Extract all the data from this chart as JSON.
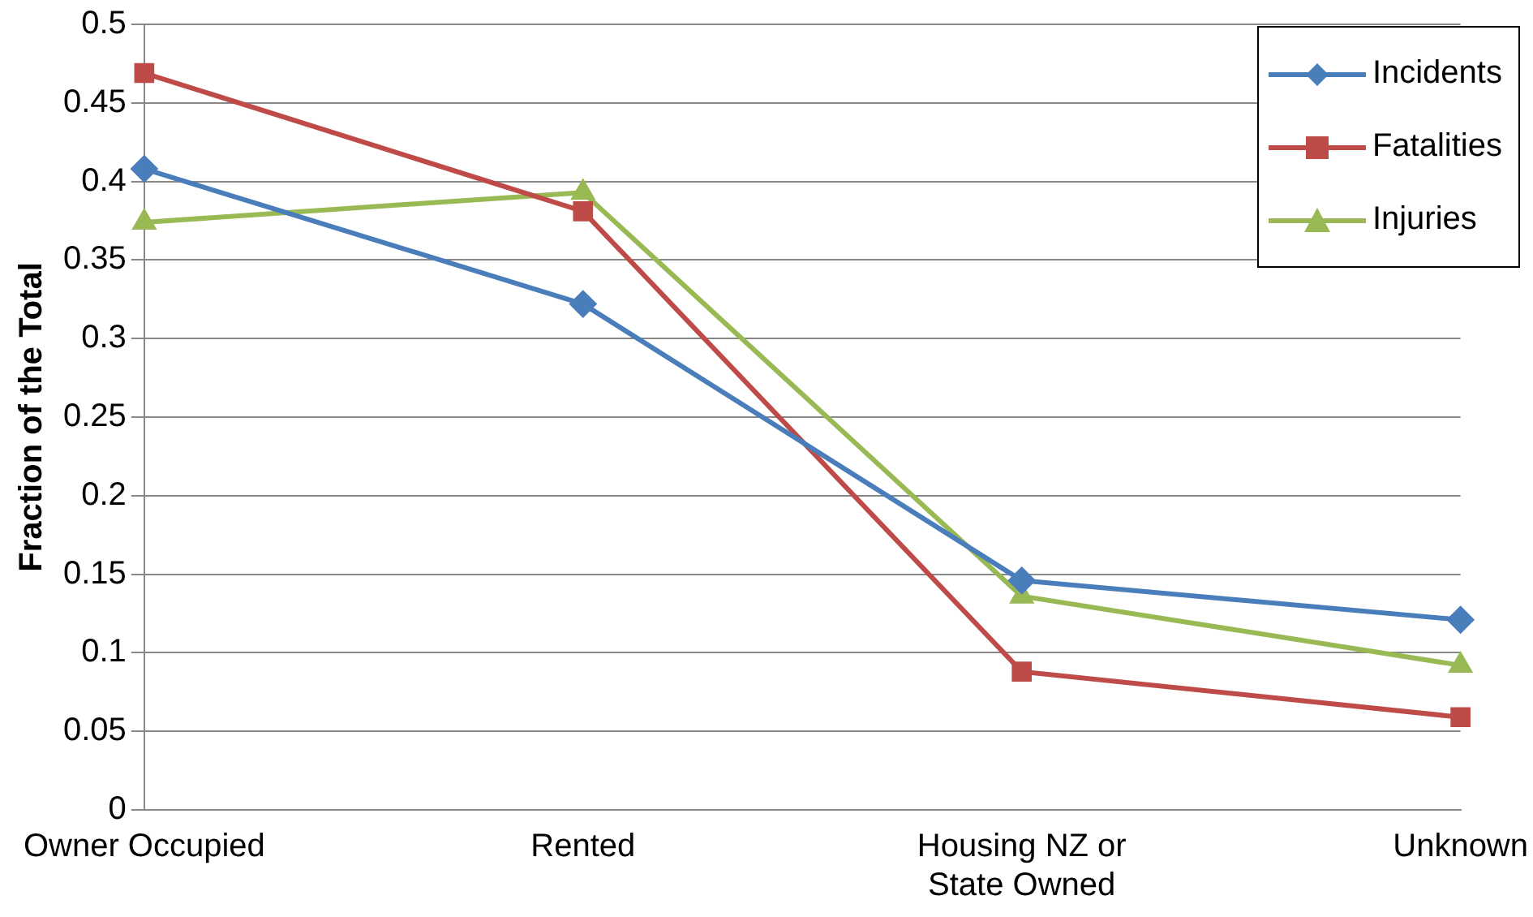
{
  "chart_data": {
    "type": "line",
    "ylabel": "Fraction of the Total",
    "categories": [
      "Owner Occupied",
      "Rented",
      "Housing NZ or State Owned",
      "Unknown"
    ],
    "series": [
      {
        "name": "Incidents",
        "color": "#4a7ebb",
        "marker": "diamond",
        "values": [
          0.408,
          0.322,
          0.146,
          0.121
        ]
      },
      {
        "name": "Fatalities",
        "color": "#be4b48",
        "marker": "square",
        "values": [
          0.469,
          0.381,
          0.088,
          0.059
        ]
      },
      {
        "name": "Injuries",
        "color": "#98b954",
        "marker": "triangle",
        "values": [
          0.374,
          0.393,
          0.136,
          0.092
        ]
      }
    ],
    "ylim": [
      0,
      0.5
    ],
    "yticks": [
      0,
      0.05,
      0.1,
      0.15,
      0.2,
      0.25,
      0.3,
      0.35,
      0.4,
      0.45,
      0.5
    ],
    "grid": "y",
    "legend": "top right",
    "line_style": "solid"
  }
}
